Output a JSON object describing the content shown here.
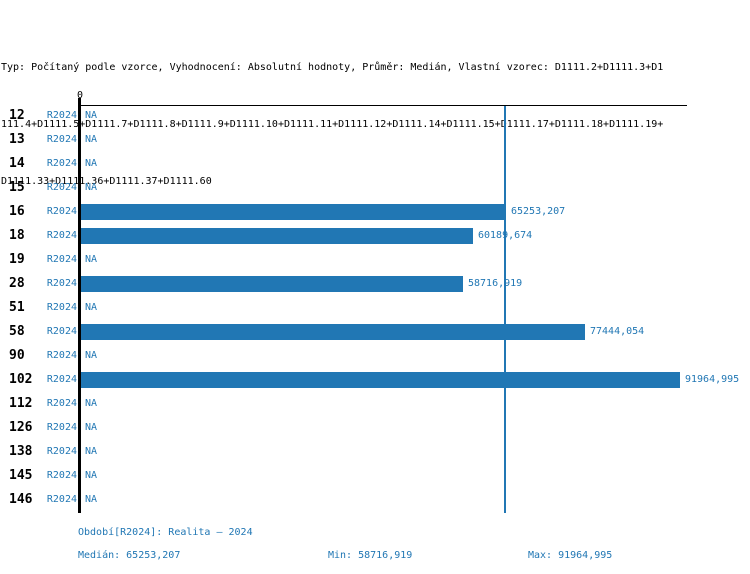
{
  "header": {
    "lines": [
      "Typ: Počítaný podle vzorce, Vyhodnocení: Absolutní hodnoty, Průměr: Medián, Vlastní vzorec: D1111.2+D1111.3+D1",
      "111.4+D1111.5+D1111.7+D1111.8+D1111.9+D1111.10+D1111.11+D1111.12+D1111.14+D1111.15+D1111.17+D1111.18+D1111.19+",
      "D1111.33+D1111.36+D1111.37+D1111.60"
    ]
  },
  "colors": {
    "accent_blue": "#2177B4",
    "axis_black": "#000000"
  },
  "axis": {
    "zero_label": "0"
  },
  "chart_data": {
    "type": "bar",
    "orientation": "horizontal",
    "title": "",
    "xlabel": "",
    "ylabel": "",
    "categories": [
      "12",
      "13",
      "14",
      "15",
      "16",
      "18",
      "19",
      "28",
      "51",
      "58",
      "90",
      "102",
      "112",
      "126",
      "138",
      "145",
      "146"
    ],
    "na_label": "NA",
    "series": [
      {
        "name": "R2024",
        "values": [
          null,
          null,
          null,
          null,
          65253.207,
          60189.674,
          null,
          58716.919,
          null,
          77444.054,
          null,
          91964.995,
          null,
          null,
          null,
          null,
          null
        ],
        "value_labels": [
          "NA",
          "NA",
          "NA",
          "NA",
          "65253,207",
          "60189,674",
          "NA",
          "58716,919",
          "NA",
          "77444,054",
          "NA",
          "91964,995",
          "NA",
          "NA",
          "NA",
          "NA",
          "NA"
        ]
      }
    ],
    "xlim": [
      0,
      92900
    ],
    "grid": false,
    "median_line_value": 65253.207,
    "stats": {
      "median": 65253.207,
      "min": 58716.919,
      "max": 91964.995
    }
  },
  "footer": {
    "period_label": "Období[R2024]: Realita – 2024",
    "median_label": "Medián: 65253,207",
    "min_label": "Min: 58716,919",
    "max_label": "Max: 91964,995"
  }
}
